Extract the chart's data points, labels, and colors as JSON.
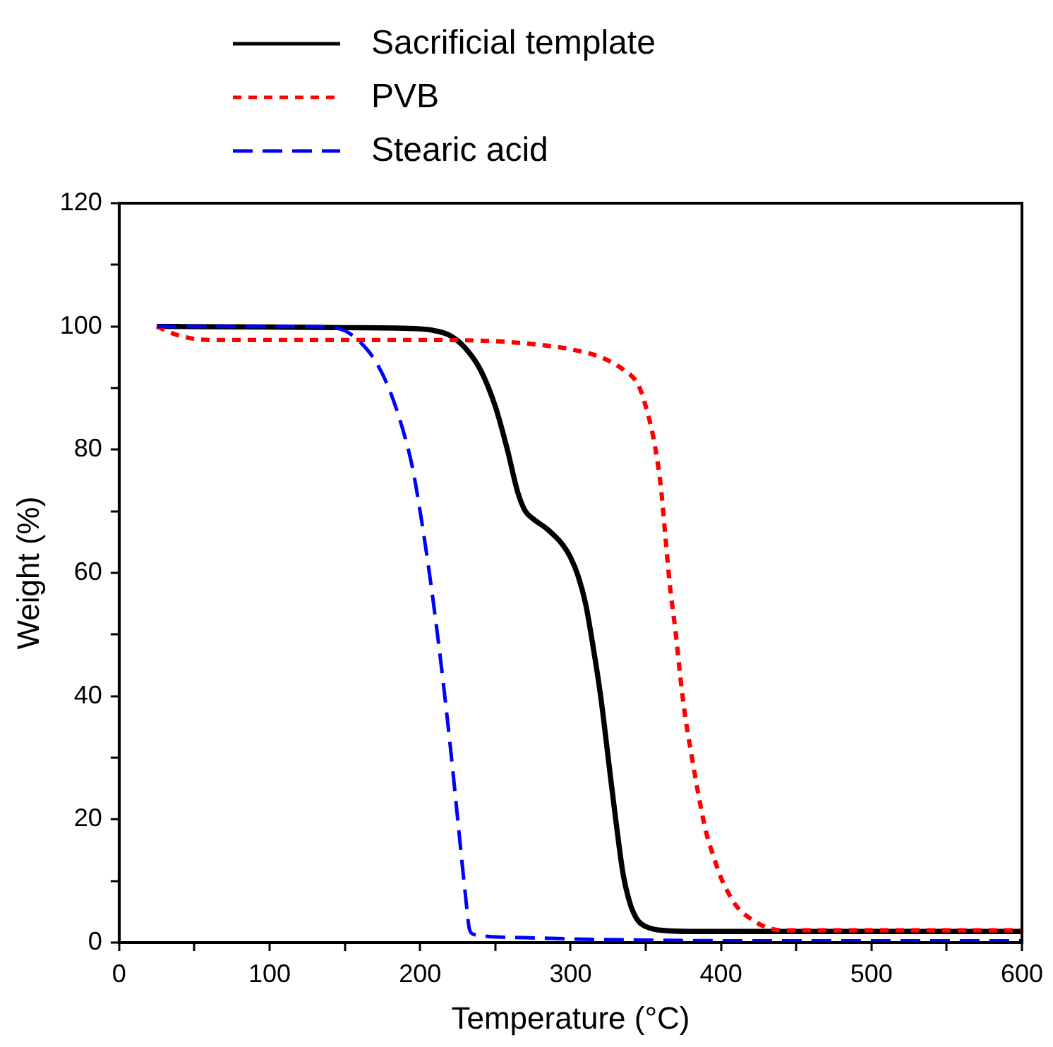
{
  "chart_data": {
    "type": "line",
    "xlabel": "Temperature (°C)",
    "ylabel": "Weight (%)",
    "xlim": [
      0,
      600
    ],
    "xticks": [
      0,
      {
        "value": 50,
        "label": null
      },
      100,
      {
        "value": 150,
        "label": null
      },
      200,
      {
        "value": 250,
        "label": null
      },
      300,
      {
        "value": 350,
        "label": null
      },
      400,
      {
        "value": 450,
        "label": null
      },
      500,
      {
        "value": 550,
        "label": null
      },
      600
    ],
    "ylim": [
      0,
      120
    ],
    "yticks": [
      0,
      {
        "value": 10,
        "label": null
      },
      20,
      {
        "value": 30,
        "label": null
      },
      40,
      {
        "value": 50,
        "label": null
      },
      60,
      {
        "value": 70,
        "label": null
      },
      80,
      {
        "value": 90,
        "label": null
      },
      100,
      {
        "value": 110,
        "label": null
      },
      120
    ],
    "grid": false,
    "legend": "top",
    "marker": "none",
    "series": [
      {
        "name": "Sacrificial template",
        "color": "#000000",
        "line_style": "solid",
        "x": [
          25,
          100,
          150,
          200,
          210,
          220,
          230,
          240,
          250,
          258,
          265,
          270,
          275,
          285,
          295,
          300,
          305,
          310,
          315,
          320,
          325,
          330,
          335,
          340,
          345,
          350,
          355,
          360,
          380,
          450,
          600
        ],
        "values": [
          100,
          99.9,
          99.8,
          99.6,
          99.3,
          98.5,
          96.5,
          93,
          87,
          80,
          73,
          70,
          68.8,
          67,
          64.5,
          62.5,
          59.5,
          55,
          48,
          40,
          30,
          20,
          11,
          6,
          3.5,
          2.6,
          2.2,
          2,
          1.8,
          1.8,
          1.8
        ]
      },
      {
        "name": "PVB",
        "color": "#ff0000",
        "line_style": "dotted",
        "x": [
          25,
          40,
          60,
          100,
          200,
          250,
          280,
          300,
          320,
          335,
          345,
          350,
          355,
          360,
          363,
          366,
          370,
          373,
          376,
          380,
          385,
          390,
          395,
          400,
          405,
          410,
          420,
          430,
          440,
          450,
          600
        ],
        "values": [
          100,
          98.5,
          97.8,
          97.8,
          97.8,
          97.6,
          97,
          96.3,
          95,
          93,
          90.5,
          87,
          82,
          74,
          66,
          58,
          50,
          43,
          37,
          31,
          24,
          18,
          14,
          10.5,
          8,
          6,
          3.8,
          2.5,
          2,
          2,
          2
        ]
      },
      {
        "name": "Stearic acid",
        "color": "#0000ff",
        "line_style": "dashed",
        "x": [
          25,
          100,
          140,
          150,
          160,
          170,
          180,
          190,
          195,
          200,
          205,
          210,
          215,
          220,
          225,
          230,
          233,
          236,
          245,
          270,
          300,
          350,
          400,
          500,
          600
        ],
        "values": [
          100,
          100,
          99.9,
          99.3,
          97.5,
          94.5,
          89.5,
          82,
          77,
          70,
          62,
          53,
          43,
          32,
          20,
          8,
          2,
          1.3,
          1,
          0.8,
          0.6,
          0.4,
          0.3,
          0.3,
          0.3
        ]
      }
    ]
  }
}
